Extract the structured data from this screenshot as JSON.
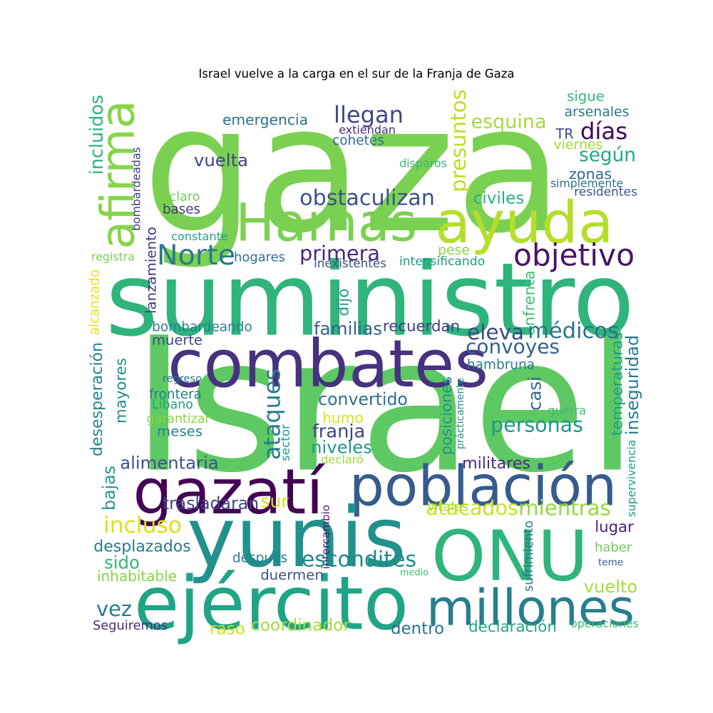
{
  "title": "Israel vuelve a la carga en el sur de la Franja de Gaza",
  "words": [
    {
      "text": "gaza",
      "color": "#7ad151"
    },
    {
      "text": "Israel",
      "color": "#5ec962"
    },
    {
      "text": "suministro",
      "color": "#2fb47c"
    },
    {
      "text": "combates",
      "color": "#46327e"
    },
    {
      "text": "población",
      "color": "#365c8d"
    },
    {
      "text": "ONU",
      "color": "#2fb47c"
    },
    {
      "text": "yunis",
      "color": "#21918c"
    },
    {
      "text": "ejército",
      "color": "#20a486"
    },
    {
      "text": "gazatí",
      "color": "#440154"
    },
    {
      "text": "millones",
      "color": "#277f8e"
    },
    {
      "text": "ayuda",
      "color": "#b5de2b"
    },
    {
      "text": "Hamas",
      "color": "#7ad151"
    },
    {
      "text": "afirma",
      "color": "#86d549"
    },
    {
      "text": "objetivo",
      "color": "#481467"
    },
    {
      "text": "Norte",
      "color": "#2a788e"
    },
    {
      "text": "obstaculizan",
      "color": "#3b528b"
    },
    {
      "text": "primera",
      "color": "#482878"
    },
    {
      "text": "llegan",
      "color": "#414487"
    },
    {
      "text": "presuntos",
      "color": "#bddf26"
    },
    {
      "text": "sigue",
      "color": "#35b779"
    },
    {
      "text": "días",
      "color": "#440154"
    },
    {
      "text": "según",
      "color": "#22a884"
    },
    {
      "text": "emergencia",
      "color": "#2c728e"
    },
    {
      "text": "esquina",
      "color": "#a5db36"
    },
    {
      "text": "TR",
      "color": "#3e4989"
    },
    {
      "text": "vuelta",
      "color": "#414487"
    },
    {
      "text": "cohetes",
      "color": "#31688e"
    },
    {
      "text": "extiendan",
      "color": "#472d7b"
    },
    {
      "text": "arsenales",
      "color": "#2a788e"
    },
    {
      "text": "viernes",
      "color": "#a0da39"
    },
    {
      "text": "zonas",
      "color": "#31688e"
    },
    {
      "text": "simplemente",
      "color": "#2d708e"
    },
    {
      "text": "residentes",
      "color": "#3b528b"
    },
    {
      "text": "disparos",
      "color": "#38b977"
    },
    {
      "text": "civiles",
      "color": "#29af7f"
    },
    {
      "text": "bases",
      "color": "#443983"
    },
    {
      "text": "claro",
      "color": "#6ccd5a"
    },
    {
      "text": "bombardeadas",
      "color": "#433d84"
    },
    {
      "text": "incluidos",
      "color": "#2db27d"
    },
    {
      "text": "constante",
      "color": "#20a486"
    },
    {
      "text": "lanzamiento",
      "color": "#443983"
    },
    {
      "text": "registra",
      "color": "#75d054"
    },
    {
      "text": "hogares",
      "color": "#2c728e"
    },
    {
      "text": "inexistentes",
      "color": "#3b528b"
    },
    {
      "text": "intensificando",
      "color": "#1f998a"
    },
    {
      "text": "pese",
      "color": "#8bd646"
    },
    {
      "text": "dijo",
      "color": "#1f9e89"
    },
    {
      "text": "enfrenta",
      "color": "#44bf70"
    },
    {
      "text": "eleva",
      "color": "#3e4989"
    },
    {
      "text": "médicos",
      "color": "#2c728e"
    },
    {
      "text": "convoyes",
      "color": "#33638d"
    },
    {
      "text": "bombardeando",
      "color": "#27808e"
    },
    {
      "text": "familias",
      "color": "#33638d"
    },
    {
      "text": "recuerdan",
      "color": "#443983"
    },
    {
      "text": "muerte",
      "color": "#3e4989"
    },
    {
      "text": "alcanzado",
      "color": "#e5e419"
    },
    {
      "text": "desesperación",
      "color": "#25838e"
    },
    {
      "text": "mayores",
      "color": "#238a8d"
    },
    {
      "text": "regreso",
      "color": "#2c728e"
    },
    {
      "text": "frontera",
      "color": "#277f8e"
    },
    {
      "text": "Líbano",
      "color": "#1fa188"
    },
    {
      "text": "garantizar",
      "color": "#8bd646"
    },
    {
      "text": "meses",
      "color": "#25838e"
    },
    {
      "text": "hambruna",
      "color": "#2a788e"
    },
    {
      "text": "temperaturas",
      "color": "#1f9e89"
    },
    {
      "text": "inseguridad",
      "color": "#287c8e"
    },
    {
      "text": "casi",
      "color": "#31688e"
    },
    {
      "text": "humo",
      "color": "#d8e219"
    },
    {
      "text": "convertido",
      "color": "#2d708e"
    },
    {
      "text": "ataques",
      "color": "#287c8e"
    },
    {
      "text": "posiciones",
      "color": "#1f948c"
    },
    {
      "text": "prácticamente",
      "color": "#228d8d"
    },
    {
      "text": "personas",
      "color": "#1f968b"
    },
    {
      "text": "guerra",
      "color": "#3fbc73"
    },
    {
      "text": "franja",
      "color": "#404688"
    },
    {
      "text": "niveles",
      "color": "#1f968b"
    },
    {
      "text": "sector",
      "color": "#1f9e89"
    },
    {
      "text": "declaró",
      "color": "#9fda3a"
    },
    {
      "text": "alimentaria",
      "color": "#3b528b"
    },
    {
      "text": "militares",
      "color": "#472c7a"
    },
    {
      "text": "supervivencia",
      "color": "#1f9e89"
    },
    {
      "text": "bajas",
      "color": "#1f9a8a"
    },
    {
      "text": "trasladaran",
      "color": "#404688"
    },
    {
      "text": "sur",
      "color": "#d5e21a"
    },
    {
      "text": "atacados",
      "color": "#cae11f"
    },
    {
      "text": "mientras",
      "color": "#95d840"
    },
    {
      "text": "incluso",
      "color": "#d8e219"
    },
    {
      "text": "intercambio",
      "color": "#481a6c"
    },
    {
      "text": "vitales",
      "color": "#a8db34"
    },
    {
      "text": "lugar",
      "color": "#482173"
    },
    {
      "text": "desplazados",
      "color": "#2a788e"
    },
    {
      "text": "sufrimiento",
      "color": "#2b758e"
    },
    {
      "text": "haber",
      "color": "#6ccd5a"
    },
    {
      "text": "después",
      "color": "#277f8e"
    },
    {
      "text": "escondites",
      "color": "#23898e"
    },
    {
      "text": "sido",
      "color": "#34b679"
    },
    {
      "text": "inhabitable",
      "color": "#84d44b"
    },
    {
      "text": "medio",
      "color": "#3fbc73"
    },
    {
      "text": "teme",
      "color": "#39568c"
    },
    {
      "text": "duermen",
      "color": "#3b528b"
    },
    {
      "text": "vuelto",
      "color": "#a5db36"
    },
    {
      "text": "vez",
      "color": "#287d8e"
    },
    {
      "text": "Seguiremos",
      "color": "#472d7b"
    },
    {
      "text": "raso",
      "color": "#d2e21b"
    },
    {
      "text": "coordinador",
      "color": "#a5db36"
    },
    {
      "text": "dentro",
      "color": "#2c728e"
    },
    {
      "text": "declaración",
      "color": "#22a785"
    },
    {
      "text": "operaciones",
      "color": "#3dbc74"
    }
  ]
}
